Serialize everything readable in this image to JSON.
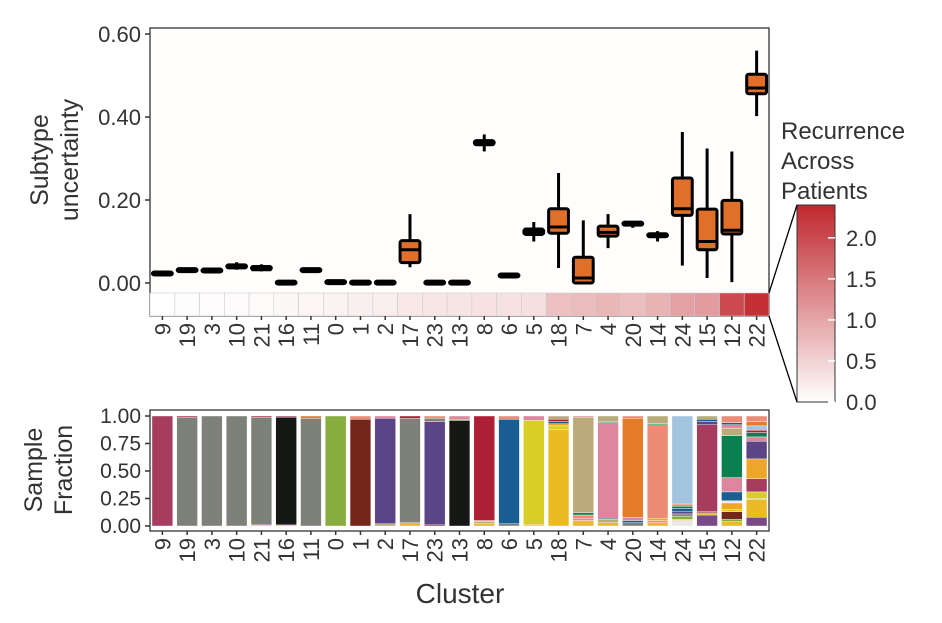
{
  "chart_data": [
    {
      "type": "boxplot",
      "title": "",
      "ylabel": [
        "Subtype",
        "uncertainty"
      ],
      "ylim": [
        -0.08,
        0.62
      ],
      "yticks": [
        0,
        0.2,
        0.4,
        0.6
      ],
      "ytick_labels": [
        "0.00",
        "0.20",
        "0.40",
        "0.60"
      ],
      "categories": [
        "9",
        "19",
        "3",
        "10",
        "21",
        "16",
        "11",
        "0",
        "1",
        "2",
        "17",
        "23",
        "13",
        "8",
        "6",
        "5",
        "18",
        "7",
        "4",
        "20",
        "14",
        "24",
        "15",
        "12",
        "22"
      ],
      "boxes": [
        {
          "min": 0.018,
          "q1": 0.019,
          "median": 0.021,
          "q3": 0.023,
          "max": 0.024
        },
        {
          "min": 0.027,
          "q1": 0.027,
          "median": 0.029,
          "q3": 0.031,
          "max": 0.031
        },
        {
          "min": 0.026,
          "q1": 0.026,
          "median": 0.028,
          "q3": 0.03,
          "max": 0.03
        },
        {
          "min": 0.032,
          "q1": 0.033,
          "median": 0.037,
          "q3": 0.04,
          "max": 0.05
        },
        {
          "min": 0.028,
          "q1": 0.029,
          "median": 0.032,
          "q3": 0.036,
          "max": 0.045
        },
        {
          "min": -0.001,
          "q1": -0.001,
          "median": 0.0,
          "q3": 0.001,
          "max": 0.001
        },
        {
          "min": 0.027,
          "q1": 0.027,
          "median": 0.029,
          "q3": 0.031,
          "max": 0.031
        },
        {
          "min": 0.0,
          "q1": 0.0,
          "median": 0.001,
          "q3": 0.002,
          "max": 0.002
        },
        {
          "min": -0.001,
          "q1": -0.001,
          "median": 0.0,
          "q3": 0.001,
          "max": 0.001
        },
        {
          "min": -0.001,
          "q1": -0.001,
          "median": 0.0,
          "q3": 0.001,
          "max": 0.001
        },
        {
          "min": 0.038,
          "q1": 0.049,
          "median": 0.08,
          "q3": 0.102,
          "max": 0.166
        },
        {
          "min": -0.001,
          "q1": -0.001,
          "median": 0.0,
          "q3": 0.001,
          "max": 0.001
        },
        {
          "min": -0.001,
          "q1": -0.001,
          "median": 0.0,
          "q3": 0.001,
          "max": 0.001
        },
        {
          "min": 0.317,
          "q1": 0.333,
          "median": 0.338,
          "q3": 0.343,
          "max": 0.358
        },
        {
          "min": 0.014,
          "q1": 0.014,
          "median": 0.016,
          "q3": 0.018,
          "max": 0.018
        },
        {
          "min": 0.1,
          "q1": 0.117,
          "median": 0.124,
          "q3": 0.13,
          "max": 0.147
        },
        {
          "min": 0.036,
          "q1": 0.12,
          "median": 0.135,
          "q3": 0.179,
          "max": 0.265
        },
        {
          "min": 0.0,
          "q1": 0.0,
          "median": 0.012,
          "q3": 0.062,
          "max": 0.151
        },
        {
          "min": 0.084,
          "q1": 0.113,
          "median": 0.122,
          "q3": 0.137,
          "max": 0.166
        },
        {
          "min": 0.133,
          "q1": 0.137,
          "median": 0.14,
          "q3": 0.143,
          "max": 0.147
        },
        {
          "min": 0.1,
          "q1": 0.109,
          "median": 0.112,
          "q3": 0.115,
          "max": 0.125
        },
        {
          "min": 0.042,
          "q1": 0.163,
          "median": 0.179,
          "q3": 0.253,
          "max": 0.364
        },
        {
          "min": 0.012,
          "q1": 0.08,
          "median": 0.1,
          "q3": 0.178,
          "max": 0.324
        },
        {
          "min": 0.002,
          "q1": 0.118,
          "median": 0.127,
          "q3": 0.199,
          "max": 0.317
        },
        {
          "min": 0.402,
          "q1": 0.456,
          "median": 0.47,
          "q3": 0.503,
          "max": 0.56
        }
      ],
      "recurrence": [
        0.0,
        0.02,
        0.03,
        0.04,
        0.06,
        0.08,
        0.1,
        0.14,
        0.18,
        0.2,
        0.26,
        0.28,
        0.3,
        0.32,
        0.32,
        0.34,
        0.7,
        0.75,
        0.8,
        0.72,
        0.85,
        1.05,
        1.1,
        2.0,
        2.3
      ],
      "box_fill": "#e07029",
      "legend": {
        "title": [
          "Recurrence",
          "Across",
          "Patients"
        ],
        "range": [
          0,
          2.4
        ],
        "ticks": [
          0,
          0.5,
          1.0,
          1.5,
          2.0
        ],
        "tick_labels": [
          "0.0",
          "0.5",
          "1.0",
          "1.5",
          "2.0"
        ],
        "color_low": "#ffffff",
        "color_high": "#c0272d",
        "placement": "right"
      }
    },
    {
      "type": "stacked_bar",
      "ylabel": [
        "Sample",
        "Fraction"
      ],
      "xlabel": "Cluster",
      "ylim": [
        0,
        1
      ],
      "yticks": [
        0,
        0.25,
        0.5,
        0.75,
        1.0
      ],
      "ytick_labels": [
        "0.00",
        "0.25",
        "0.50",
        "0.75",
        "1.00"
      ],
      "categories": [
        "9",
        "19",
        "3",
        "10",
        "21",
        "16",
        "11",
        "0",
        "1",
        "2",
        "17",
        "23",
        "13",
        "8",
        "6",
        "5",
        "18",
        "7",
        "4",
        "20",
        "14",
        "24",
        "15",
        "12",
        "22"
      ],
      "palette": {
        "maroon": "#a63c5e",
        "gray": "#7e807a",
        "black": "#161815",
        "green": "#86ad3e",
        "brown": "#75261b",
        "purple": "#5b4587",
        "red": "#ad1f35",
        "blue": "#185e92",
        "yellow": "#d8ce26",
        "gold": "#ebbb23",
        "tan": "#bcab7a",
        "pink": "#de869e",
        "orange": "#e67c29",
        "salmon": "#ed8c74",
        "lightblue": "#a2c4e0",
        "darkgreen": "#0a8050",
        "amber": "#eda62a",
        "plum": "#7a4a86",
        "lightgray": "#e8e8e8"
      },
      "stacks": [
        [
          [
            "maroon",
            1.0
          ]
        ],
        [
          [
            "gray",
            0.99
          ],
          [
            "red",
            0.01
          ]
        ],
        [
          [
            "gray",
            1.0
          ]
        ],
        [
          [
            "gray",
            1.0
          ]
        ],
        [
          [
            "gold",
            0.01
          ],
          [
            "gray",
            0.98
          ],
          [
            "red",
            0.01
          ]
        ],
        [
          [
            "gold",
            0.01
          ],
          [
            "black",
            0.98
          ],
          [
            "maroon",
            0.01
          ]
        ],
        [
          [
            "gray",
            0.98
          ],
          [
            "orange",
            0.02
          ]
        ],
        [
          [
            "green",
            1.0
          ]
        ],
        [
          [
            "brown",
            0.97
          ],
          [
            "salmon",
            0.03
          ]
        ],
        [
          [
            "tan",
            0.02
          ],
          [
            "purple",
            0.96
          ],
          [
            "pink",
            0.02
          ]
        ],
        [
          [
            "gold",
            0.03
          ],
          [
            "gray",
            0.95
          ],
          [
            "red",
            0.02
          ]
        ],
        [
          [
            "brown",
            0.01
          ],
          [
            "purple",
            0.94
          ],
          [
            "gray",
            0.03
          ],
          [
            "salmon",
            0.02
          ]
        ],
        [
          [
            "black",
            0.96
          ],
          [
            "green",
            0.01
          ],
          [
            "pink",
            0.03
          ]
        ],
        [
          [
            "gold",
            0.02
          ],
          [
            "tan",
            0.02
          ],
          [
            "salmon",
            0.01
          ],
          [
            "red",
            0.95
          ]
        ],
        [
          [
            "gray",
            0.02
          ],
          [
            "blue",
            0.95
          ],
          [
            "salmon",
            0.03
          ]
        ],
        [
          [
            "gold",
            0.01
          ],
          [
            "yellow",
            0.95
          ],
          [
            "pink",
            0.04
          ]
        ],
        [
          [
            "gold",
            0.88
          ],
          [
            "yellow",
            0.03
          ],
          [
            "amber",
            0.02
          ],
          [
            "blue",
            0.02
          ],
          [
            "red",
            0.02
          ],
          [
            "tan",
            0.03
          ]
        ],
        [
          [
            "gold",
            0.05
          ],
          [
            "pink",
            0.02
          ],
          [
            "salmon",
            0.03
          ],
          [
            "darkgreen",
            0.02
          ],
          [
            "tan",
            0.87
          ],
          [
            "pink",
            0.01
          ]
        ],
        [
          [
            "gold",
            0.03
          ],
          [
            "tan",
            0.03
          ],
          [
            "blue",
            0.01
          ],
          [
            "pink",
            0.87
          ],
          [
            "darkgreen",
            0.01
          ],
          [
            "tan",
            0.05
          ]
        ],
        [
          [
            "gray",
            0.03
          ],
          [
            "blue",
            0.02
          ],
          [
            "pink",
            0.03
          ],
          [
            "orange",
            0.9
          ],
          [
            "salmon",
            0.02
          ]
        ],
        [
          [
            "gold",
            0.03
          ],
          [
            "salmon",
            0.02
          ],
          [
            "amber",
            0.02
          ],
          [
            "salmon",
            0.85
          ],
          [
            "darkgreen",
            0.01
          ],
          [
            "tan",
            0.07
          ]
        ],
        [
          [
            "lightgray",
            0.05
          ],
          [
            "gold",
            0.01
          ],
          [
            "green",
            0.03
          ],
          [
            "gray",
            0.02
          ],
          [
            "purple",
            0.02
          ],
          [
            "blue",
            0.03
          ],
          [
            "darkgreen",
            0.02
          ],
          [
            "salmon",
            0.02
          ],
          [
            "lightblue",
            0.8
          ]
        ],
        [
          [
            "plum",
            0.1
          ],
          [
            "gold",
            0.02
          ],
          [
            "brown",
            0.01
          ],
          [
            "maroon",
            0.79
          ],
          [
            "purple",
            0.03
          ],
          [
            "blue",
            0.02
          ],
          [
            "tan",
            0.03
          ]
        ],
        [
          [
            "gold",
            0.04
          ],
          [
            "green",
            0.02
          ],
          [
            "brown",
            0.07
          ],
          [
            "gold",
            0.02
          ],
          [
            "amber",
            0.06
          ],
          [
            "lightgray",
            0.02
          ],
          [
            "blue",
            0.08
          ],
          [
            "pink",
            0.13
          ],
          [
            "darkgreen",
            0.38
          ],
          [
            "tan",
            0.07
          ],
          [
            "pink",
            0.03
          ],
          [
            "blue",
            0.02
          ],
          [
            "salmon",
            0.06
          ]
        ],
        [
          [
            "plum",
            0.08
          ],
          [
            "gold",
            0.16
          ],
          [
            "tan",
            0.01
          ],
          [
            "yellow",
            0.06
          ],
          [
            "maroon",
            0.12
          ],
          [
            "amber",
            0.18
          ],
          [
            "purple",
            0.16
          ],
          [
            "pink",
            0.04
          ],
          [
            "darkgreen",
            0.04
          ],
          [
            "red",
            0.02
          ],
          [
            "lightblue",
            0.04
          ],
          [
            "orange",
            0.04
          ],
          [
            "salmon",
            0.05
          ]
        ]
      ]
    }
  ]
}
